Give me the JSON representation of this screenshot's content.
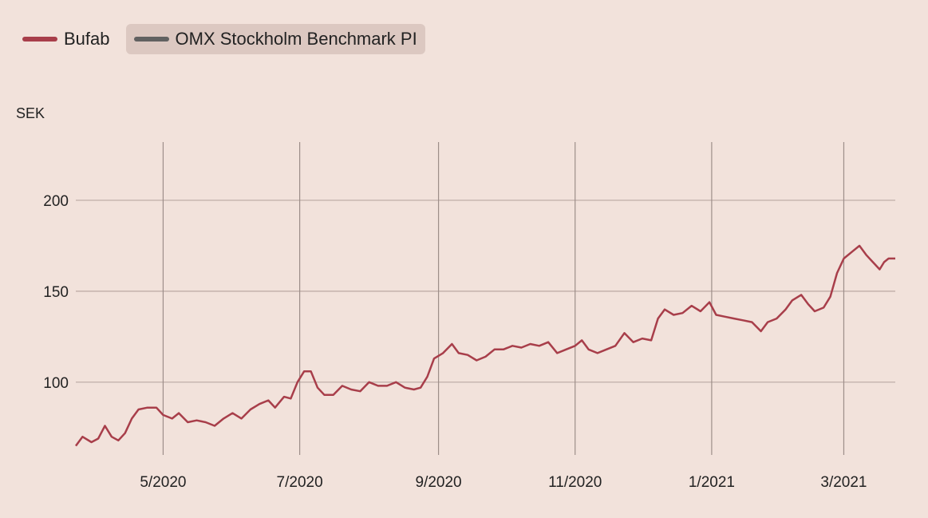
{
  "legend": [
    {
      "label": "Bufab",
      "color": "#a83e4a",
      "selected": false
    },
    {
      "label": "OMX Stockholm Benchmark PI",
      "color": "#616161",
      "selected": true
    }
  ],
  "chart_data": {
    "type": "line",
    "ylabel": "SEK",
    "ylim": [
      60,
      232
    ],
    "xlim": [
      "2020-03-23",
      "2021-03-24"
    ],
    "yticks": [
      100,
      150,
      200
    ],
    "xticks": [
      {
        "date": "2020-05-01",
        "label": "5/2020"
      },
      {
        "date": "2020-07-01",
        "label": "7/2020"
      },
      {
        "date": "2020-09-01",
        "label": "9/2020"
      },
      {
        "date": "2020-11-01",
        "label": "11/2020"
      },
      {
        "date": "2021-01-01",
        "label": "1/2021"
      },
      {
        "date": "2021-03-01",
        "label": "3/2021"
      }
    ],
    "grid": true,
    "legend_position": "top-left",
    "series": [
      {
        "name": "Bufab",
        "color": "#a83e4a",
        "points": [
          [
            "2020-03-23",
            65
          ],
          [
            "2020-03-26",
            70
          ],
          [
            "2020-03-30",
            67
          ],
          [
            "2020-04-02",
            69
          ],
          [
            "2020-04-05",
            76
          ],
          [
            "2020-04-08",
            70
          ],
          [
            "2020-04-11",
            68
          ],
          [
            "2020-04-14",
            72
          ],
          [
            "2020-04-17",
            80
          ],
          [
            "2020-04-20",
            85
          ],
          [
            "2020-04-24",
            86
          ],
          [
            "2020-04-28",
            86
          ],
          [
            "2020-05-01",
            82
          ],
          [
            "2020-05-05",
            80
          ],
          [
            "2020-05-08",
            83
          ],
          [
            "2020-05-12",
            78
          ],
          [
            "2020-05-16",
            79
          ],
          [
            "2020-05-20",
            78
          ],
          [
            "2020-05-24",
            76
          ],
          [
            "2020-05-28",
            80
          ],
          [
            "2020-06-01",
            83
          ],
          [
            "2020-06-05",
            80
          ],
          [
            "2020-06-09",
            85
          ],
          [
            "2020-06-13",
            88
          ],
          [
            "2020-06-17",
            90
          ],
          [
            "2020-06-20",
            86
          ],
          [
            "2020-06-24",
            92
          ],
          [
            "2020-06-27",
            91
          ],
          [
            "2020-06-30",
            100
          ],
          [
            "2020-07-03",
            106
          ],
          [
            "2020-07-06",
            106
          ],
          [
            "2020-07-09",
            97
          ],
          [
            "2020-07-12",
            93
          ],
          [
            "2020-07-16",
            93
          ],
          [
            "2020-07-20",
            98
          ],
          [
            "2020-07-24",
            96
          ],
          [
            "2020-07-28",
            95
          ],
          [
            "2020-08-01",
            100
          ],
          [
            "2020-08-05",
            98
          ],
          [
            "2020-08-09",
            98
          ],
          [
            "2020-08-13",
            100
          ],
          [
            "2020-08-17",
            97
          ],
          [
            "2020-08-21",
            96
          ],
          [
            "2020-08-24",
            97
          ],
          [
            "2020-08-27",
            103
          ],
          [
            "2020-08-30",
            113
          ],
          [
            "2020-09-03",
            116
          ],
          [
            "2020-09-07",
            121
          ],
          [
            "2020-09-10",
            116
          ],
          [
            "2020-09-14",
            115
          ],
          [
            "2020-09-18",
            112
          ],
          [
            "2020-09-22",
            114
          ],
          [
            "2020-09-26",
            118
          ],
          [
            "2020-09-30",
            118
          ],
          [
            "2020-10-04",
            120
          ],
          [
            "2020-10-08",
            119
          ],
          [
            "2020-10-12",
            121
          ],
          [
            "2020-10-16",
            120
          ],
          [
            "2020-10-20",
            122
          ],
          [
            "2020-10-24",
            116
          ],
          [
            "2020-10-28",
            118
          ],
          [
            "2020-11-01",
            120
          ],
          [
            "2020-11-04",
            123
          ],
          [
            "2020-11-07",
            118
          ],
          [
            "2020-11-11",
            116
          ],
          [
            "2020-11-15",
            118
          ],
          [
            "2020-11-19",
            120
          ],
          [
            "2020-11-23",
            127
          ],
          [
            "2020-11-27",
            122
          ],
          [
            "2020-12-01",
            124
          ],
          [
            "2020-12-05",
            123
          ],
          [
            "2020-12-08",
            135
          ],
          [
            "2020-12-11",
            140
          ],
          [
            "2020-12-15",
            137
          ],
          [
            "2020-12-19",
            138
          ],
          [
            "2020-12-23",
            142
          ],
          [
            "2020-12-27",
            139
          ],
          [
            "2020-12-31",
            144
          ],
          [
            "2021-01-03",
            137
          ],
          [
            "2021-01-07",
            136
          ],
          [
            "2021-01-11",
            135
          ],
          [
            "2021-01-15",
            134
          ],
          [
            "2021-01-19",
            133
          ],
          [
            "2021-01-23",
            128
          ],
          [
            "2021-01-26",
            133
          ],
          [
            "2021-01-30",
            135
          ],
          [
            "2021-02-03",
            140
          ],
          [
            "2021-02-06",
            145
          ],
          [
            "2021-02-10",
            148
          ],
          [
            "2021-02-13",
            143
          ],
          [
            "2021-02-16",
            139
          ],
          [
            "2021-02-20",
            141
          ],
          [
            "2021-02-23",
            147
          ],
          [
            "2021-02-26",
            160
          ],
          [
            "2021-03-01",
            168
          ],
          [
            "2021-03-05",
            172
          ],
          [
            "2021-03-08",
            175
          ],
          [
            "2021-03-11",
            170
          ],
          [
            "2021-03-14",
            166
          ],
          [
            "2021-03-17",
            162
          ],
          [
            "2021-03-19",
            166
          ],
          [
            "2021-03-21",
            168
          ],
          [
            "2021-03-24",
            168
          ]
        ]
      },
      {
        "name": "OMX Stockholm Benchmark PI",
        "color": "#616161",
        "points": []
      }
    ]
  }
}
